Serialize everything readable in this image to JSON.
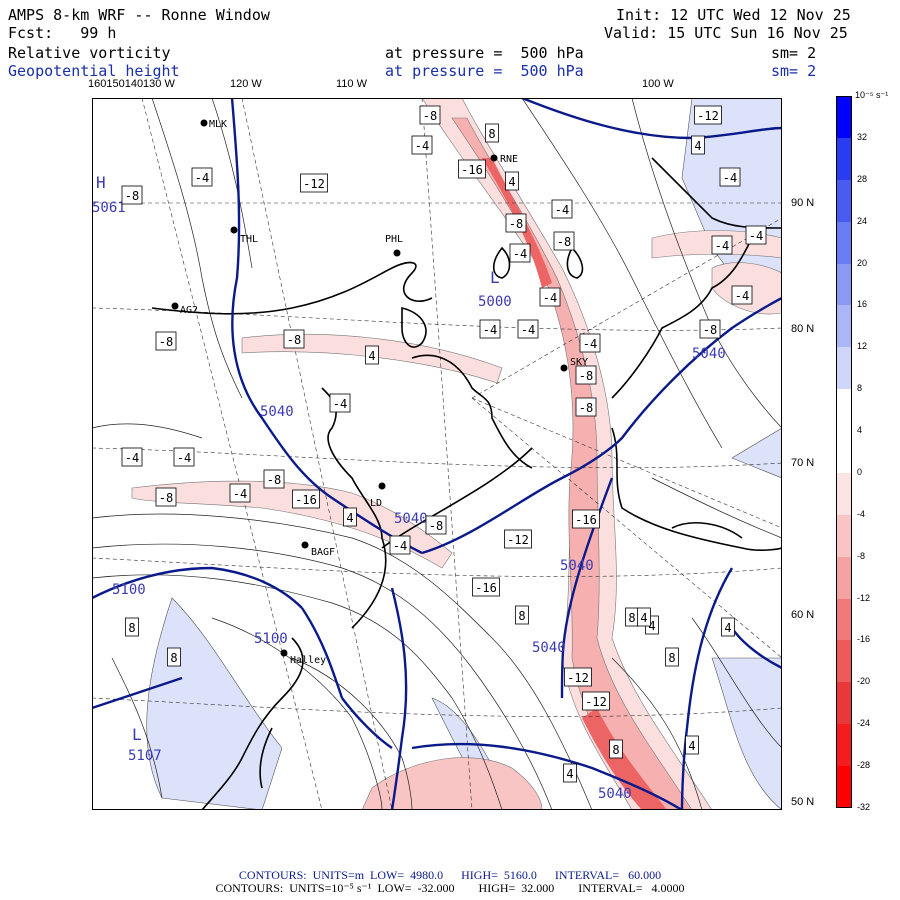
{
  "header": {
    "title": "AMPS 8-km WRF -- Ronne Window",
    "init": "Init: 12 UTC Wed 12 Nov 25",
    "fcst": "Fcst:   99 h",
    "valid": "Valid: 15 UTC Sun 16 Nov 25",
    "field1": {
      "name": "Relative vorticity",
      "level": "at pressure =  500 hPa",
      "smooth": "sm= 2"
    },
    "field2": {
      "name": "Geopotential height",
      "level": "at pressure =  500 hPa",
      "smooth": "sm= 2"
    }
  },
  "lon_labels": [
    "160150140130 W",
    "120 W",
    "110 W",
    "100 W"
  ],
  "lat_labels": [
    "90 N",
    "80 N",
    "70 N",
    "60 N",
    "50 N"
  ],
  "colorbar": {
    "unit": "10⁻⁵ s⁻¹",
    "ticks": [
      "32",
      "28",
      "24",
      "20",
      "16",
      "12",
      "8",
      "4",
      "0",
      "-4",
      "-8",
      "-12",
      "-16",
      "-20",
      "-24",
      "-28",
      "-32"
    ],
    "colors": [
      "#0000ff",
      "#2a3cf2",
      "#4a5cf0",
      "#6a7cf2",
      "#8a9af4",
      "#aab6f6",
      "#cfd6fa",
      "#ffffff",
      "#ffffff",
      "#fde4e4",
      "#f8c4c4",
      "#f4a2a2",
      "#f07a7a",
      "#ec5a5a",
      "#e83838",
      "#f41c1c",
      "#ff0000"
    ]
  },
  "map_labels": {
    "stations": [
      "MLK",
      "RNE",
      "THL",
      "PHL",
      "AG2",
      "SKY",
      "LD",
      "BAGF",
      "Halley"
    ],
    "highs": [
      {
        "tag": "H",
        "value": "5061"
      }
    ],
    "lows": [
      {
        "tag": "L",
        "value": "5000"
      },
      {
        "tag": "L",
        "value": "5107"
      }
    ],
    "height_contours": [
      "5040",
      "5040",
      "5040",
      "5040",
      "5100",
      "5100",
      "5040",
      "5040"
    ],
    "vort_boxes": [
      "-8",
      "8",
      "-4",
      "-12",
      "4",
      "-16",
      "4",
      "-4",
      "-12",
      "-8",
      "-4",
      "-4",
      "-8",
      "-4",
      "-4",
      "-8",
      "-4",
      "-4",
      "-4",
      "-4",
      "-4",
      "-8",
      "-8",
      "4",
      "-4",
      "-8",
      "-8",
      "-8",
      "-4",
      "-4",
      "-4",
      "-8",
      "-8",
      "-4",
      "4",
      "-16",
      "-8",
      "-4",
      "-12",
      "-16",
      "-16",
      "8",
      "8",
      "8",
      "4",
      "8",
      "8",
      "-12",
      "-12",
      "8",
      "4",
      "4",
      "4",
      "4"
    ]
  },
  "footer": {
    "line1": "CONTOURS:  UNITS=m  LOW=  4980.0      HIGH=  5160.0      INTERVAL=   60.000",
    "line2": "CONTOURS:  UNITS=10⁻⁵ s⁻¹  LOW=  -32.000        HIGH=  32.000        INTERVAL=   4.0000"
  }
}
